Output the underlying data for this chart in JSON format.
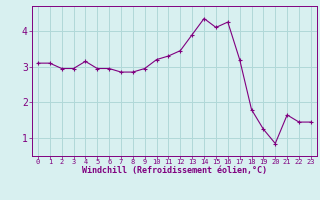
{
  "x": [
    0,
    1,
    2,
    3,
    4,
    5,
    6,
    7,
    8,
    9,
    10,
    11,
    12,
    13,
    14,
    15,
    16,
    17,
    18,
    19,
    20,
    21,
    22,
    23
  ],
  "y": [
    3.1,
    3.1,
    2.95,
    2.95,
    3.15,
    2.95,
    2.95,
    2.85,
    2.85,
    2.95,
    3.2,
    3.3,
    3.45,
    3.9,
    4.35,
    4.1,
    4.25,
    3.2,
    1.8,
    1.25,
    0.85,
    1.65,
    1.45,
    1.45
  ],
  "line_color": "#800080",
  "marker": "+",
  "marker_size": 3,
  "bg_color": "#d8f0f0",
  "grid_color": "#b0d8d8",
  "xlabel": "Windchill (Refroidissement éolien,°C)",
  "xlabel_color": "#800080",
  "tick_color": "#800080",
  "spine_color": "#800080",
  "ylim": [
    0.5,
    4.7
  ],
  "xlim": [
    -0.5,
    23.5
  ],
  "yticks": [
    1,
    2,
    3,
    4
  ],
  "xticks": [
    0,
    1,
    2,
    3,
    4,
    5,
    6,
    7,
    8,
    9,
    10,
    11,
    12,
    13,
    14,
    15,
    16,
    17,
    18,
    19,
    20,
    21,
    22,
    23
  ]
}
